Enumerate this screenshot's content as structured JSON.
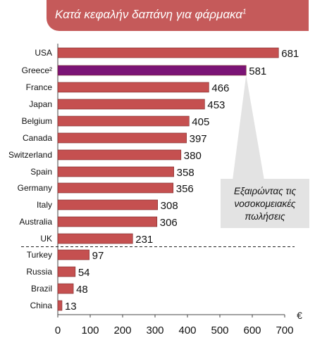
{
  "title": {
    "text": "Κατά κεφαλήν δαπάνη για φάρμακα",
    "sup": "1"
  },
  "callout": {
    "lines": [
      "Εξαιρώντας τις",
      "νοσοκομειακές",
      "πωλήσεις"
    ]
  },
  "colors": {
    "bar": "#c55050",
    "highlight": "#7b1476",
    "title_band": "#c55a5a",
    "callout_bg": "#e3e3e3"
  },
  "chart_data": {
    "type": "bar",
    "orientation": "horizontal",
    "categories": [
      "USA",
      "Greece²",
      "France",
      "Japan",
      "Belgium",
      "Canada",
      "Switzerland",
      "Spain",
      "Germany",
      "Italy",
      "Australia",
      "UK",
      "Turkey",
      "Russia",
      "Brazil",
      "China"
    ],
    "values": [
      681,
      581,
      466,
      453,
      405,
      397,
      380,
      358,
      356,
      308,
      306,
      231,
      97,
      54,
      48,
      13
    ],
    "highlight_category": "Greece²",
    "separator_after": "UK",
    "xlim": [
      0,
      700
    ],
    "xticks": [
      0,
      100,
      200,
      300,
      400,
      500,
      600,
      700
    ],
    "unit": "€",
    "grid": false
  }
}
